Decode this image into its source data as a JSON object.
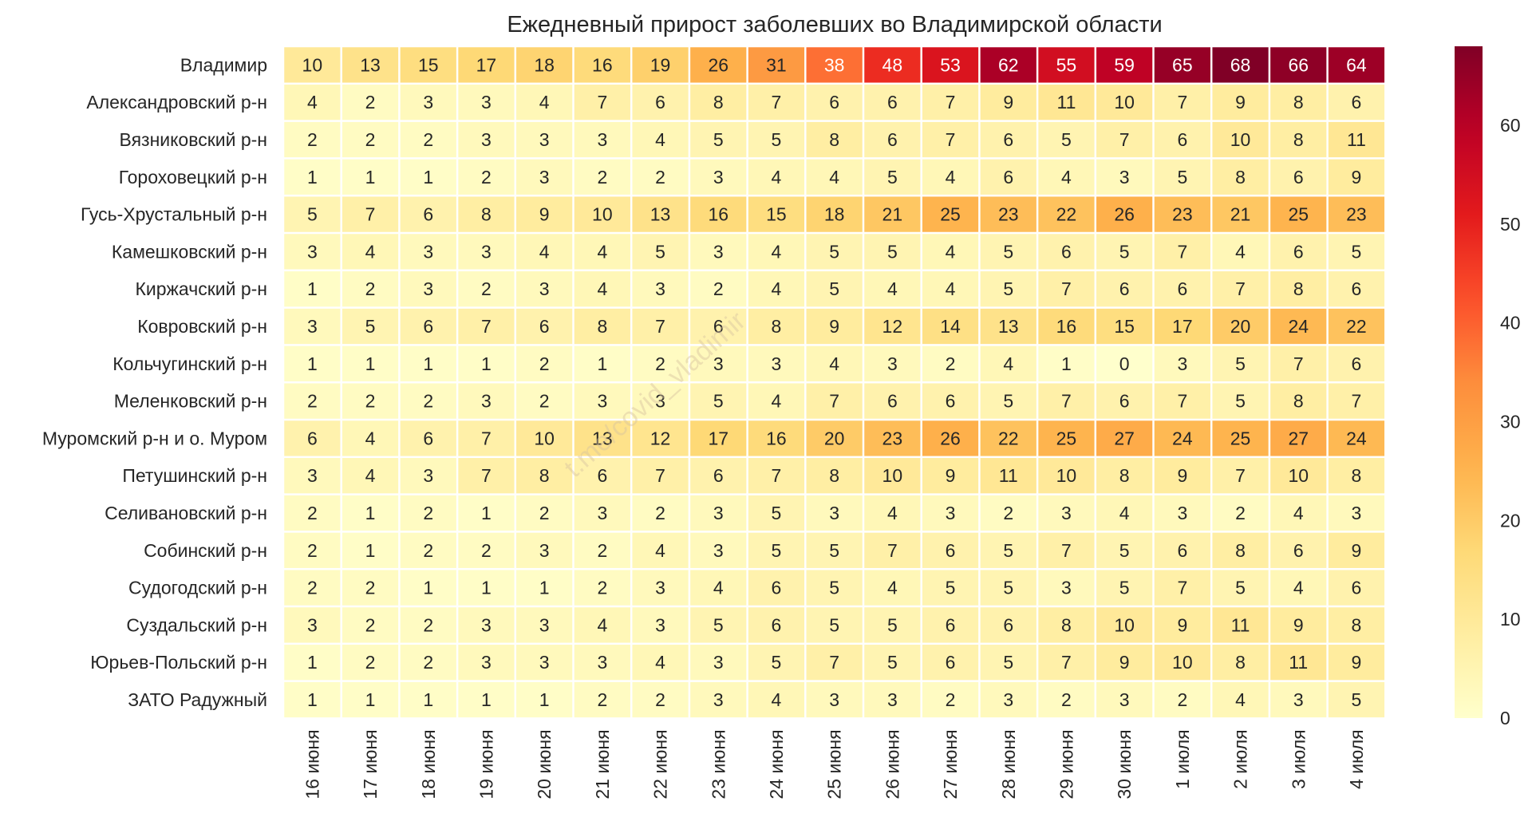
{
  "chart_data": {
    "type": "heatmap",
    "title": "Ежедневный прирост заболевших во Владимирской области",
    "watermark": "t.me/covid_vladimir",
    "rows": [
      "Владимир",
      "Александровский р-н",
      "Вязниковский р-н",
      "Гороховецкий р-н",
      "Гусь-Хрустальный р-н",
      "Камешковский р-н",
      "Киржачский р-н",
      "Ковровский р-н",
      "Кольчугинский р-н",
      "Меленковский р-н",
      "Муромский р-н и о. Муром",
      "Петушинский р-н",
      "Селивановский р-н",
      "Собинский р-н",
      "Судогодский р-н",
      "Суздальский р-н",
      "Юрьев-Польский р-н",
      "ЗАТО Радужный"
    ],
    "columns": [
      "16 июня",
      "17 июня",
      "18 июня",
      "19 июня",
      "20 июня",
      "21 июня",
      "22 июня",
      "23 июня",
      "24 июня",
      "25 июня",
      "26 июня",
      "27 июня",
      "28 июня",
      "29 июня",
      "30 июня",
      "1 июля",
      "2 июля",
      "3 июля",
      "4 июля"
    ],
    "values": [
      [
        10,
        13,
        15,
        17,
        18,
        16,
        19,
        26,
        31,
        38,
        48,
        53,
        62,
        55,
        59,
        65,
        68,
        66,
        64
      ],
      [
        4,
        2,
        3,
        3,
        4,
        7,
        6,
        8,
        7,
        6,
        6,
        7,
        9,
        11,
        10,
        7,
        9,
        8,
        6
      ],
      [
        2,
        2,
        2,
        3,
        3,
        3,
        4,
        5,
        5,
        8,
        6,
        7,
        6,
        5,
        7,
        6,
        10,
        8,
        11
      ],
      [
        1,
        1,
        1,
        2,
        3,
        2,
        2,
        3,
        4,
        4,
        5,
        4,
        6,
        4,
        3,
        5,
        8,
        6,
        9
      ],
      [
        5,
        7,
        6,
        8,
        9,
        10,
        13,
        16,
        15,
        18,
        21,
        25,
        23,
        22,
        26,
        23,
        21,
        25,
        23
      ],
      [
        3,
        4,
        3,
        3,
        4,
        4,
        5,
        3,
        4,
        5,
        5,
        4,
        5,
        6,
        5,
        7,
        4,
        6,
        5
      ],
      [
        1,
        2,
        3,
        2,
        3,
        4,
        3,
        2,
        4,
        5,
        4,
        4,
        5,
        7,
        6,
        6,
        7,
        8,
        6
      ],
      [
        3,
        5,
        6,
        7,
        6,
        8,
        7,
        6,
        8,
        9,
        12,
        14,
        13,
        16,
        15,
        17,
        20,
        24,
        22
      ],
      [
        1,
        1,
        1,
        1,
        2,
        1,
        2,
        3,
        3,
        4,
        3,
        2,
        4,
        1,
        0,
        3,
        5,
        7,
        6
      ],
      [
        2,
        2,
        2,
        3,
        2,
        3,
        3,
        5,
        4,
        7,
        6,
        6,
        5,
        7,
        6,
        7,
        5,
        8,
        7
      ],
      [
        6,
        4,
        6,
        7,
        10,
        13,
        12,
        17,
        16,
        20,
        23,
        26,
        22,
        25,
        27,
        24,
        25,
        27,
        24
      ],
      [
        3,
        4,
        3,
        7,
        8,
        6,
        7,
        6,
        7,
        8,
        10,
        9,
        11,
        10,
        8,
        9,
        7,
        10,
        8
      ],
      [
        2,
        1,
        2,
        1,
        2,
        3,
        2,
        3,
        5,
        3,
        4,
        3,
        2,
        3,
        4,
        3,
        2,
        4,
        3
      ],
      [
        2,
        1,
        2,
        2,
        3,
        2,
        4,
        3,
        5,
        5,
        7,
        6,
        5,
        7,
        5,
        6,
        8,
        6,
        9
      ],
      [
        2,
        2,
        1,
        1,
        1,
        2,
        3,
        4,
        6,
        5,
        4,
        5,
        5,
        3,
        5,
        7,
        5,
        4,
        6
      ],
      [
        3,
        2,
        2,
        3,
        3,
        4,
        3,
        5,
        6,
        5,
        5,
        6,
        6,
        8,
        10,
        9,
        11,
        9,
        8
      ],
      [
        1,
        2,
        2,
        3,
        3,
        3,
        4,
        3,
        5,
        7,
        5,
        6,
        5,
        7,
        9,
        10,
        8,
        11,
        9
      ],
      [
        1,
        1,
        1,
        1,
        1,
        2,
        2,
        3,
        4,
        3,
        3,
        2,
        3,
        2,
        3,
        2,
        4,
        3,
        5
      ]
    ],
    "colorbar": {
      "colormap": "YlOrRd",
      "range": [
        0,
        68
      ],
      "ticks": [
        0,
        10,
        20,
        30,
        40,
        50,
        60
      ]
    },
    "grid": false
  }
}
